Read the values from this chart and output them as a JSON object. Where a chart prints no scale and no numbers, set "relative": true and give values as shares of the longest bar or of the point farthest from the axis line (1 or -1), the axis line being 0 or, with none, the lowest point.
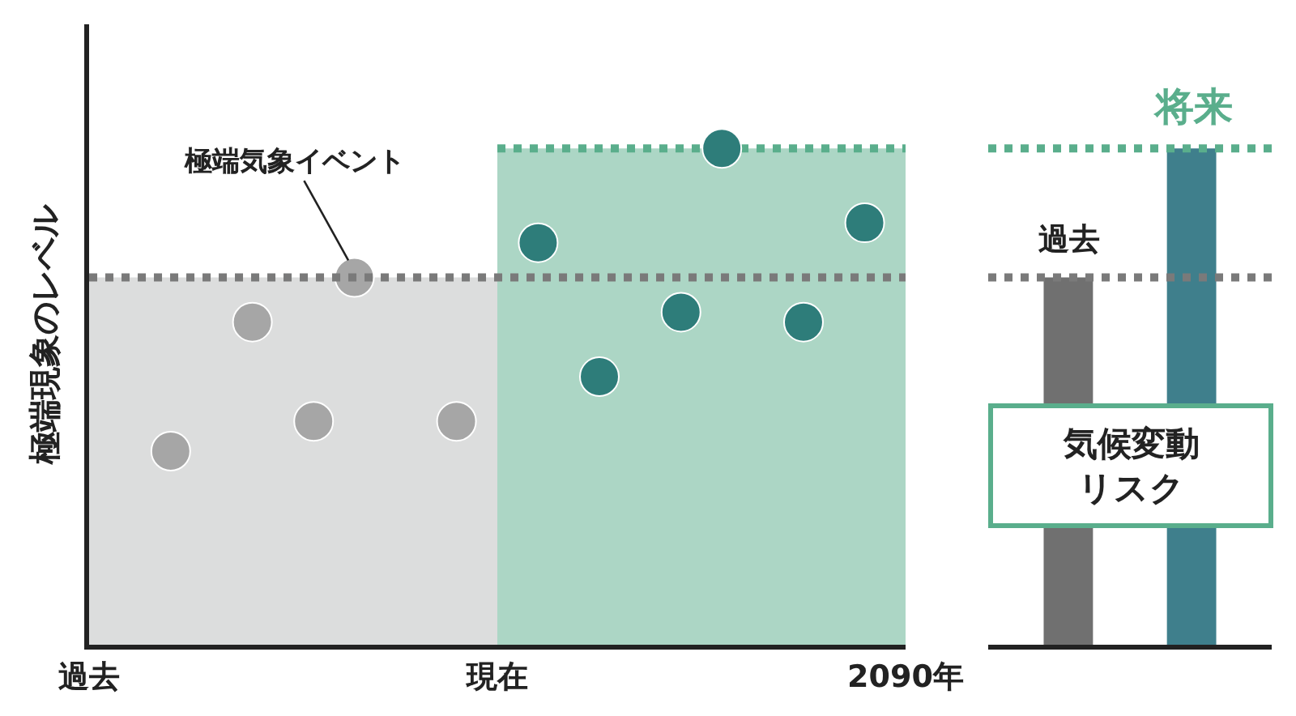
{
  "chart_data": [
    {
      "type": "scatter",
      "relative": true,
      "ylabel": "極端現象のレベル",
      "categories": [
        "過去",
        null,
        null,
        null,
        null,
        null,
        null,
        null,
        null,
        null,
        null,
        null,
        null,
        null,
        null,
        null,
        null,
        null,
        null,
        null,
        "現在",
        null,
        null,
        null,
        null,
        null,
        null,
        null,
        null,
        null,
        null,
        null,
        null,
        null,
        null,
        null,
        null,
        null,
        null,
        null,
        "2090年"
      ],
      "marker": "circle",
      "series": [
        {
          "type": "area",
          "marker": "none",
          "color": "#dcdddd",
          "values": [
            0.74,
            null,
            null,
            null,
            null,
            null,
            null,
            null,
            null,
            null,
            null,
            null,
            null,
            null,
            null,
            null,
            null,
            null,
            null,
            null,
            0.74,
            null,
            null,
            null,
            null,
            null,
            null,
            null,
            null,
            null,
            null,
            null,
            null,
            null,
            null,
            null,
            null,
            null,
            null,
            null,
            null
          ]
        },
        {
          "type": "area",
          "marker": "none",
          "color": "#5aae8c",
          "line_style": "dotted",
          "values": [
            null,
            null,
            null,
            null,
            null,
            null,
            null,
            null,
            null,
            null,
            null,
            null,
            null,
            null,
            null,
            null,
            null,
            null,
            null,
            null,
            1,
            null,
            null,
            null,
            null,
            null,
            null,
            null,
            null,
            null,
            null,
            null,
            null,
            null,
            null,
            null,
            null,
            null,
            null,
            null,
            1
          ]
        },
        {
          "color": "#a6a6a6",
          "values": [
            null,
            null,
            null,
            null,
            0.39,
            null,
            null,
            null,
            0.65,
            null,
            null,
            0.45,
            null,
            0.74,
            null,
            null,
            null,
            null,
            0.45,
            null,
            null,
            null,
            null,
            null,
            null,
            null,
            null,
            null,
            null,
            null,
            null,
            null,
            null,
            null,
            null,
            null,
            null,
            null,
            null,
            null,
            null
          ]
        },
        {
          "color": "#2e7d7a",
          "values": [
            null,
            null,
            null,
            null,
            null,
            null,
            null,
            null,
            null,
            null,
            null,
            null,
            null,
            null,
            null,
            null,
            null,
            null,
            null,
            null,
            null,
            null,
            0.81,
            null,
            null,
            0.54,
            null,
            null,
            null,
            0.67,
            null,
            1,
            null,
            null,
            null,
            0.65,
            null,
            null,
            0.85,
            null,
            null
          ]
        }
      ],
      "ref_lines": [
        {
          "axis": "y",
          "value": 0.74,
          "color": "#7a7a7a",
          "line_style": "dotted"
        }
      ],
      "annotations": [
        "極端気象イベント"
      ]
    },
    {
      "type": "bar",
      "relative": true,
      "categories": [
        null,
        null
      ],
      "values": [
        0.74,
        1
      ],
      "colors": [
        "#707070",
        "#3f7f8c"
      ],
      "ref_lines": [
        {
          "axis": "y",
          "value": 0.74,
          "label": "過去",
          "color": "#7a7a7a",
          "line_style": "dotted"
        },
        {
          "axis": "y",
          "value": 1,
          "label": "将来",
          "color": "#5aae8c",
          "line_style": "dotted"
        }
      ],
      "annotations": [
        "気候変動リスク"
      ]
    }
  ]
}
